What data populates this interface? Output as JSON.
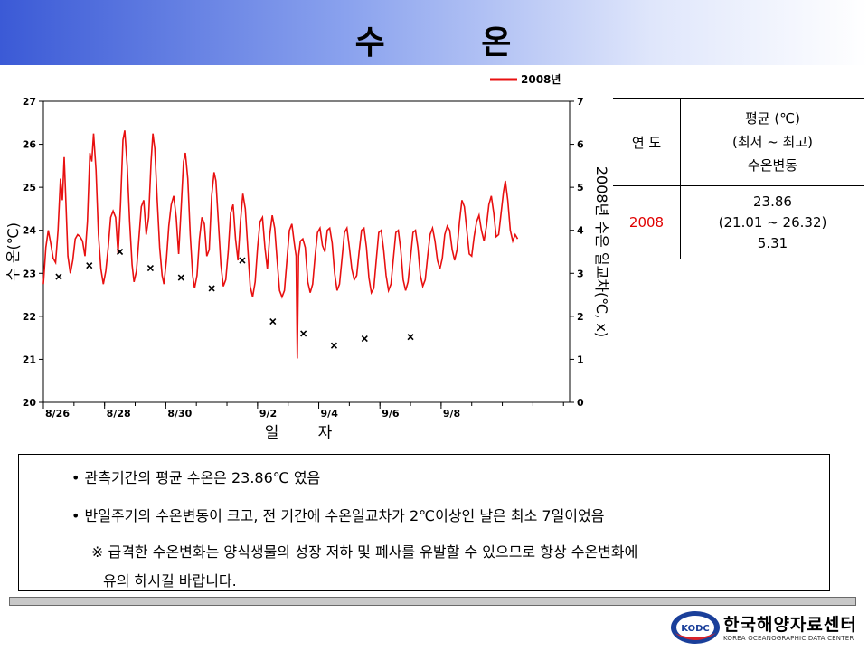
{
  "page": {
    "title": "수      온"
  },
  "table": {
    "header_year": "연 도",
    "header_stat_lines": [
      "평균 (℃)",
      "(최저 ~ 최고)",
      "수온변동"
    ],
    "rows": [
      {
        "year": "2008",
        "mean": "23.86",
        "range": "(21.01 ~ 26.32)",
        "variation": "5.31"
      }
    ]
  },
  "notes": {
    "bullet1": "• 관측기간의 평균 수온은 23.86℃ 였음",
    "bullet2": "• 반일주기의 수온변동이 크고, 전 기간에 수온일교차가 2℃이상인 날은 최소 7일이었음",
    "warning_line1": "※ 급격한 수온변화는 양식생물의 성장 저하 및 폐사를 유발할 수 있으므로 항상 수온변화에",
    "warning_line2": "유의 하시길 바랍니다."
  },
  "logo": {
    "name": "한국해양자료센터",
    "sub": "KOREA OCEANOGRAPHIC DATA CENTER",
    "badge": "KODC"
  },
  "colors": {
    "series": "#e81010",
    "marker": "#000000"
  },
  "chart_data": {
    "type": "line",
    "ylabel": "수 온(℃)",
    "y2label": "2008년 수온 일교차(℃, x)",
    "xlabel": "일        자",
    "ylim": [
      20,
      27
    ],
    "y2lim": [
      0,
      7
    ],
    "xlim_days": [
      0,
      17.2
    ],
    "yticks": [
      20,
      21,
      22,
      23,
      24,
      25,
      26,
      27
    ],
    "y2ticks": [
      0,
      1,
      2,
      3,
      4,
      5,
      6,
      7
    ],
    "xtick_labels": [
      {
        "label": "8/26",
        "day": 0
      },
      {
        "label": "8/28",
        "day": 2
      },
      {
        "label": "8/30",
        "day": 4
      },
      {
        "label": "9/2",
        "day": 7
      },
      {
        "label": "9/4",
        "day": 9
      },
      {
        "label": "9/6",
        "day": 11
      },
      {
        "label": "9/8",
        "day": 13
      }
    ],
    "series": [
      {
        "name": "2008년",
        "axis": "left",
        "points": [
          [
            0.0,
            22.75
          ],
          [
            0.08,
            23.6
          ],
          [
            0.16,
            24.0
          ],
          [
            0.24,
            23.7
          ],
          [
            0.32,
            23.35
          ],
          [
            0.4,
            23.25
          ],
          [
            0.48,
            24.0
          ],
          [
            0.56,
            25.2
          ],
          [
            0.62,
            24.7
          ],
          [
            0.68,
            25.7
          ],
          [
            0.74,
            24.6
          ],
          [
            0.8,
            23.4
          ],
          [
            0.88,
            23.0
          ],
          [
            0.96,
            23.3
          ],
          [
            1.04,
            23.8
          ],
          [
            1.12,
            23.9
          ],
          [
            1.2,
            23.85
          ],
          [
            1.28,
            23.75
          ],
          [
            1.36,
            23.4
          ],
          [
            1.44,
            24.2
          ],
          [
            1.52,
            25.8
          ],
          [
            1.58,
            25.6
          ],
          [
            1.64,
            26.25
          ],
          [
            1.72,
            25.4
          ],
          [
            1.8,
            23.9
          ],
          [
            1.88,
            23.1
          ],
          [
            1.96,
            22.75
          ],
          [
            2.04,
            23.05
          ],
          [
            2.12,
            23.6
          ],
          [
            2.2,
            24.3
          ],
          [
            2.28,
            24.45
          ],
          [
            2.36,
            24.3
          ],
          [
            2.44,
            23.45
          ],
          [
            2.52,
            24.6
          ],
          [
            2.6,
            26.1
          ],
          [
            2.66,
            26.32
          ],
          [
            2.74,
            25.5
          ],
          [
            2.82,
            24.2
          ],
          [
            2.9,
            23.2
          ],
          [
            2.96,
            22.8
          ],
          [
            3.04,
            23.05
          ],
          [
            3.12,
            23.8
          ],
          [
            3.2,
            24.55
          ],
          [
            3.28,
            24.7
          ],
          [
            3.36,
            23.9
          ],
          [
            3.44,
            24.3
          ],
          [
            3.52,
            25.6
          ],
          [
            3.58,
            26.25
          ],
          [
            3.64,
            25.9
          ],
          [
            3.72,
            24.7
          ],
          [
            3.8,
            23.6
          ],
          [
            3.88,
            22.95
          ],
          [
            3.94,
            22.75
          ],
          [
            4.02,
            23.3
          ],
          [
            4.1,
            24.1
          ],
          [
            4.18,
            24.6
          ],
          [
            4.26,
            24.8
          ],
          [
            4.34,
            24.3
          ],
          [
            4.42,
            23.45
          ],
          [
            4.5,
            24.5
          ],
          [
            4.58,
            25.6
          ],
          [
            4.64,
            25.8
          ],
          [
            4.72,
            25.2
          ],
          [
            4.8,
            23.9
          ],
          [
            4.88,
            22.95
          ],
          [
            4.94,
            22.65
          ],
          [
            5.02,
            22.95
          ],
          [
            5.1,
            23.8
          ],
          [
            5.18,
            24.3
          ],
          [
            5.26,
            24.15
          ],
          [
            5.34,
            23.4
          ],
          [
            5.42,
            23.55
          ],
          [
            5.5,
            24.8
          ],
          [
            5.58,
            25.35
          ],
          [
            5.64,
            25.15
          ],
          [
            5.72,
            24.2
          ],
          [
            5.8,
            23.2
          ],
          [
            5.88,
            22.7
          ],
          [
            5.96,
            22.85
          ],
          [
            6.04,
            23.5
          ],
          [
            6.12,
            24.4
          ],
          [
            6.2,
            24.6
          ],
          [
            6.28,
            23.8
          ],
          [
            6.36,
            23.3
          ],
          [
            6.44,
            24.2
          ],
          [
            6.52,
            24.85
          ],
          [
            6.6,
            24.5
          ],
          [
            6.68,
            23.6
          ],
          [
            6.76,
            22.7
          ],
          [
            6.84,
            22.45
          ],
          [
            6.92,
            22.8
          ],
          [
            7.0,
            23.6
          ],
          [
            7.08,
            24.2
          ],
          [
            7.16,
            24.3
          ],
          [
            7.24,
            23.6
          ],
          [
            7.32,
            23.1
          ],
          [
            7.4,
            23.9
          ],
          [
            7.48,
            24.35
          ],
          [
            7.56,
            24.05
          ],
          [
            7.64,
            23.3
          ],
          [
            7.72,
            22.6
          ],
          [
            7.8,
            22.45
          ],
          [
            7.88,
            22.6
          ],
          [
            7.96,
            23.3
          ],
          [
            8.04,
            24.0
          ],
          [
            8.12,
            24.15
          ],
          [
            8.2,
            23.7
          ],
          [
            8.26,
            23.4
          ],
          [
            8.3,
            21.02
          ],
          [
            8.34,
            23.4
          ],
          [
            8.4,
            23.75
          ],
          [
            8.48,
            23.8
          ],
          [
            8.56,
            23.6
          ],
          [
            8.64,
            22.8
          ],
          [
            8.72,
            22.55
          ],
          [
            8.8,
            22.75
          ],
          [
            8.88,
            23.4
          ],
          [
            8.96,
            23.95
          ],
          [
            9.04,
            24.05
          ],
          [
            9.12,
            23.65
          ],
          [
            9.2,
            23.5
          ],
          [
            9.28,
            24.0
          ],
          [
            9.36,
            24.05
          ],
          [
            9.44,
            23.7
          ],
          [
            9.52,
            23.0
          ],
          [
            9.6,
            22.6
          ],
          [
            9.68,
            22.75
          ],
          [
            9.76,
            23.35
          ],
          [
            9.84,
            23.95
          ],
          [
            9.92,
            24.05
          ],
          [
            10.0,
            23.6
          ],
          [
            10.08,
            23.1
          ],
          [
            10.16,
            22.85
          ],
          [
            10.24,
            22.95
          ],
          [
            10.32,
            23.5
          ],
          [
            10.4,
            24.0
          ],
          [
            10.48,
            24.05
          ],
          [
            10.56,
            23.6
          ],
          [
            10.64,
            22.9
          ],
          [
            10.72,
            22.55
          ],
          [
            10.8,
            22.65
          ],
          [
            10.88,
            23.3
          ],
          [
            10.96,
            23.95
          ],
          [
            11.04,
            24.0
          ],
          [
            11.12,
            23.55
          ],
          [
            11.2,
            22.95
          ],
          [
            11.28,
            22.6
          ],
          [
            11.36,
            22.75
          ],
          [
            11.44,
            23.35
          ],
          [
            11.52,
            23.95
          ],
          [
            11.6,
            24.0
          ],
          [
            11.68,
            23.55
          ],
          [
            11.76,
            22.85
          ],
          [
            11.84,
            22.6
          ],
          [
            11.92,
            22.8
          ],
          [
            12.0,
            23.35
          ],
          [
            12.08,
            23.95
          ],
          [
            12.16,
            24.0
          ],
          [
            12.24,
            23.6
          ],
          [
            12.32,
            22.95
          ],
          [
            12.4,
            22.7
          ],
          [
            12.48,
            22.85
          ],
          [
            12.56,
            23.4
          ],
          [
            12.64,
            23.9
          ],
          [
            12.72,
            24.05
          ],
          [
            12.8,
            23.75
          ],
          [
            12.88,
            23.3
          ],
          [
            12.96,
            23.1
          ],
          [
            13.04,
            23.35
          ],
          [
            13.12,
            23.9
          ],
          [
            13.2,
            24.1
          ],
          [
            13.28,
            24.0
          ],
          [
            13.36,
            23.55
          ],
          [
            13.44,
            23.3
          ],
          [
            13.52,
            23.55
          ],
          [
            13.6,
            24.2
          ],
          [
            13.68,
            24.7
          ],
          [
            13.76,
            24.55
          ],
          [
            13.84,
            24.0
          ],
          [
            13.92,
            23.45
          ],
          [
            14.0,
            23.4
          ],
          [
            14.08,
            23.85
          ],
          [
            14.16,
            24.2
          ],
          [
            14.24,
            24.35
          ],
          [
            14.32,
            24.0
          ],
          [
            14.4,
            23.75
          ],
          [
            14.48,
            24.1
          ],
          [
            14.56,
            24.6
          ],
          [
            14.64,
            24.8
          ],
          [
            14.72,
            24.4
          ],
          [
            14.8,
            23.85
          ],
          [
            14.88,
            23.9
          ],
          [
            14.96,
            24.4
          ],
          [
            15.04,
            24.9
          ],
          [
            15.1,
            25.15
          ],
          [
            15.18,
            24.7
          ],
          [
            15.26,
            24.0
          ],
          [
            15.34,
            23.75
          ],
          [
            15.42,
            23.9
          ],
          [
            15.5,
            23.8
          ]
        ]
      }
    ],
    "daily_range": {
      "name": "수온 일교차",
      "axis": "right",
      "marker": "x",
      "points": [
        [
          0.5,
          2.92
        ],
        [
          1.5,
          3.18
        ],
        [
          2.5,
          3.5
        ],
        [
          3.5,
          3.12
        ],
        [
          4.5,
          2.9
        ],
        [
          5.5,
          2.65
        ],
        [
          6.5,
          3.3
        ],
        [
          7.5,
          1.88
        ],
        [
          8.5,
          1.6
        ],
        [
          9.5,
          1.32
        ],
        [
          10.5,
          1.48
        ],
        [
          12.0,
          1.52
        ]
      ]
    }
  }
}
